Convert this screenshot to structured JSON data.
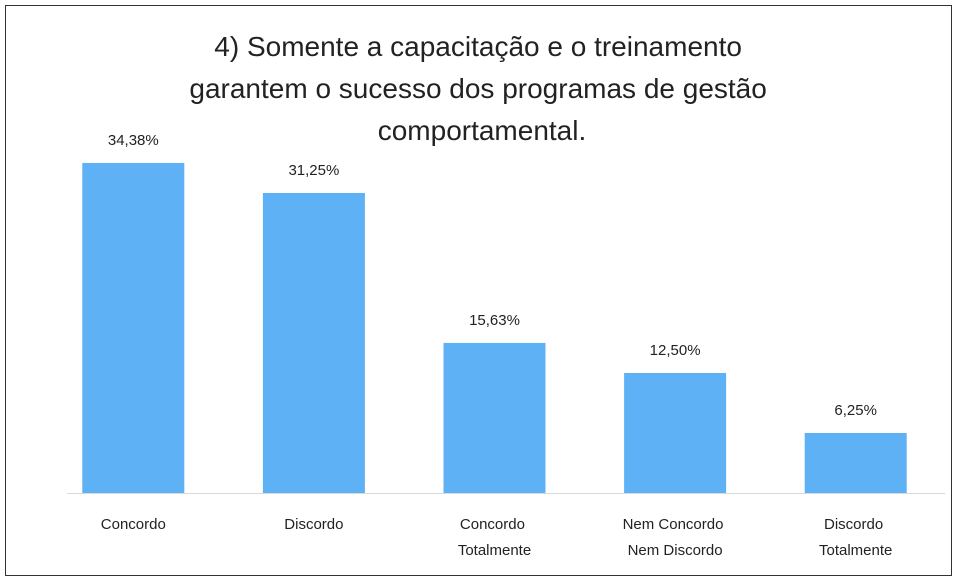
{
  "chart_data": {
    "type": "bar",
    "title": "4) Somente a capacitação e o treinamento garantem o sucesso dos programas de gestão comportamental.",
    "categories": [
      "Concordo",
      "Discordo",
      "Concordo Totalmente",
      "Nem Concordo Nem Discordo",
      "Discordo Totalmente"
    ],
    "values": [
      34.38,
      31.25,
      15.63,
      12.5,
      6.25
    ],
    "value_labels": [
      "34,38%",
      "31,25%",
      "15,63%",
      "12,50%",
      "6,25%"
    ],
    "color": "#5fb1f6"
  }
}
